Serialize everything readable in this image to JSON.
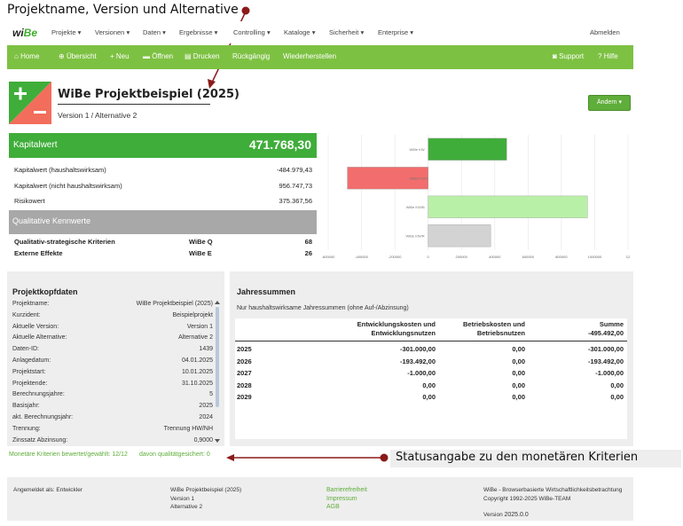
{
  "annotations": {
    "top": "Projektname, Version und Alternative",
    "bottom": "Statusangabe zu den monetären Kriterien"
  },
  "colors": {
    "brand_green": "#7dc142",
    "kw_green": "#3fad3a",
    "arrow": "#8b1a1a"
  },
  "nav": {
    "logo_wi": "wi",
    "logo_be": "Be",
    "items": [
      "Projekte",
      "Versionen",
      "Daten",
      "Ergebnisse",
      "Controlling",
      "Kataloge",
      "Sicherheit",
      "Enterprise"
    ],
    "logout": "Abmelden"
  },
  "toolbar": {
    "home": "Home",
    "overview": "Übersicht",
    "new": "Neu",
    "open": "Öffnen",
    "print": "Drucken",
    "undo": "Rückgängig",
    "redo": "Wiederherstellen",
    "support": "Support",
    "help": "Hilfe"
  },
  "project": {
    "title": "WiBe Projektbeispiel (2025)",
    "subtitle": "Version 1 / Alternative 2",
    "change_button": "Ändern"
  },
  "kapitalwert": {
    "label": "Kapitalwert",
    "value": "471.768,30",
    "rows": [
      {
        "label": "Kapitalwert (haushaltswirksam)",
        "value": "-484.979,43"
      },
      {
        "label": "Kapitalwert (nicht haushaltswirksam)",
        "value": "956.747,73"
      },
      {
        "label": "Risikowert",
        "value": "375.367,56"
      }
    ]
  },
  "qualitative": {
    "label": "Qualitative Kennwerte",
    "rows": [
      {
        "label": "Qualitativ-strategische Kriterien",
        "code": "WiBe Q",
        "value": "68"
      },
      {
        "label": "Externe Effekte",
        "code": "WiBe E",
        "value": "26"
      }
    ]
  },
  "chart_data": {
    "type": "bar",
    "orientation": "horizontal",
    "categories": [
      "WiBe KW",
      "WiBe KW/A",
      "WiBe KW/B",
      "WiBe KW/R"
    ],
    "values": [
      471768,
      -484979,
      956748,
      375368
    ],
    "bar_colors": [
      "#3fad3a",
      "#f26d6d",
      "#b9f0a8",
      "#d3d3d3"
    ],
    "xticks": [
      "-600000",
      "-400000",
      "-200000",
      "0",
      "200000",
      "400000",
      "600000",
      "800000",
      "1000000",
      "12"
    ],
    "xlim": [
      -600000,
      1200000
    ],
    "grid": true
  },
  "projektkopf": {
    "title": "Projektkopfdaten",
    "rows": [
      {
        "label": "Projektname:",
        "value": "WiBe Projektbeispiel (2025)"
      },
      {
        "label": "Kurzident:",
        "value": "Beispielprojekt"
      },
      {
        "label": "Aktuelle Version:",
        "value": "Version 1"
      },
      {
        "label": "Aktuelle Alternative:",
        "value": "Alternative 2"
      },
      {
        "label": "Daten-ID:",
        "value": "1439"
      },
      {
        "label": "Anlagedatum:",
        "value": "04.01.2025"
      },
      {
        "label": "Projektstart:",
        "value": "10.01.2025"
      },
      {
        "label": "Projektende:",
        "value": "31.10.2025"
      },
      {
        "label": "Berechnungsjahre:",
        "value": "5"
      },
      {
        "label": "Basisjahr:",
        "value": "2025"
      },
      {
        "label": "akt. Berechnungsjahr:",
        "value": "2024"
      },
      {
        "label": "Trennung:",
        "value": "Trennung HW/NH"
      },
      {
        "label": "Zinssatz Abzinsung:",
        "value": "0,9000"
      }
    ]
  },
  "jahressummen": {
    "title": "Jahressummen",
    "note": "Nur haushaltswirksame Jahressummen (ohne Auf-/Abzinsung)",
    "headers": [
      [
        "Entwicklungskosten und",
        "Entwicklungsnutzen"
      ],
      [
        "Betriebskosten und",
        "Betriebsnutzen"
      ],
      [
        "Summe",
        "-495.492,00"
      ]
    ],
    "rows": [
      {
        "year": "2025",
        "dev": "-301.000,00",
        "ops": "0,00",
        "sum": "-301.000,00"
      },
      {
        "year": "2026",
        "dev": "-193.492,00",
        "ops": "0,00",
        "sum": "-193.492,00"
      },
      {
        "year": "2027",
        "dev": "-1.000,00",
        "ops": "0,00",
        "sum": "-1.000,00"
      },
      {
        "year": "2028",
        "dev": "0,00",
        "ops": "0,00",
        "sum": "0,00"
      },
      {
        "year": "2029",
        "dev": "0,00",
        "ops": "0,00",
        "sum": "0,00"
      }
    ]
  },
  "status": {
    "monetary": "Monetäre Kriterien bewertet/gewählt: 12/12",
    "qualitative": "davon qualitätgesichert: 0"
  },
  "footer": {
    "logged_in": "Angemeldet als: Entwickler",
    "project": [
      "WiBe Projektbeispiel (2025)",
      "Version 1",
      "Alternative 2"
    ],
    "links": [
      "Barrierefreiheit",
      "Impressum",
      "AGB"
    ],
    "about": [
      "WiBe - Browserbasierte Wirtschaftlichkeitsbetrachtung",
      "Copyright 1992-2025 WiBe-TEAM"
    ],
    "version_label": "Version",
    "version": "2025.0.0"
  }
}
